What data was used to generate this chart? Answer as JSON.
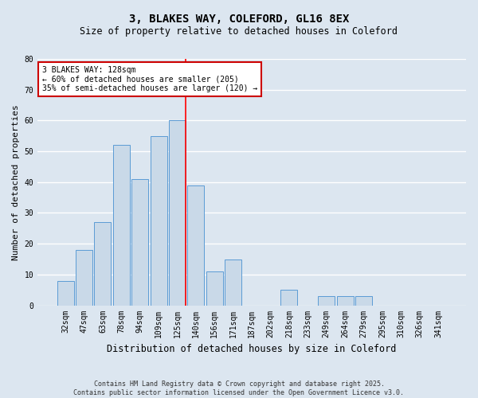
{
  "title": "3, BLAKES WAY, COLEFORD, GL16 8EX",
  "subtitle": "Size of property relative to detached houses in Coleford",
  "xlabel": "Distribution of detached houses by size in Coleford",
  "ylabel": "Number of detached properties",
  "footer_line1": "Contains HM Land Registry data © Crown copyright and database right 2025.",
  "footer_line2": "Contains public sector information licensed under the Open Government Licence v3.0.",
  "categories": [
    "32sqm",
    "47sqm",
    "63sqm",
    "78sqm",
    "94sqm",
    "109sqm",
    "125sqm",
    "140sqm",
    "156sqm",
    "171sqm",
    "187sqm",
    "202sqm",
    "218sqm",
    "233sqm",
    "249sqm",
    "264sqm",
    "279sqm",
    "295sqm",
    "310sqm",
    "326sqm",
    "341sqm"
  ],
  "values": [
    8,
    18,
    27,
    52,
    41,
    55,
    60,
    39,
    11,
    15,
    0,
    0,
    5,
    0,
    3,
    3,
    3,
    0,
    0,
    0,
    0
  ],
  "bar_color": "#c9d9e8",
  "bar_edge_color": "#5b9bd5",
  "red_line_index": 6,
  "annotation_title": "3 BLAKES WAY: 128sqm",
  "annotation_line1": "← 60% of detached houses are smaller (205)",
  "annotation_line2": "35% of semi-detached houses are larger (120) →",
  "annotation_box_color": "#ffffff",
  "annotation_box_edge": "#cc0000",
  "ylim": [
    0,
    80
  ],
  "background_color": "#dce6f0",
  "plot_bg_color": "#dce6f0",
  "grid_color": "#ffffff",
  "title_fontsize": 10,
  "subtitle_fontsize": 8.5,
  "axis_label_fontsize": 8,
  "tick_fontsize": 7,
  "annotation_fontsize": 7,
  "footer_fontsize": 6
}
